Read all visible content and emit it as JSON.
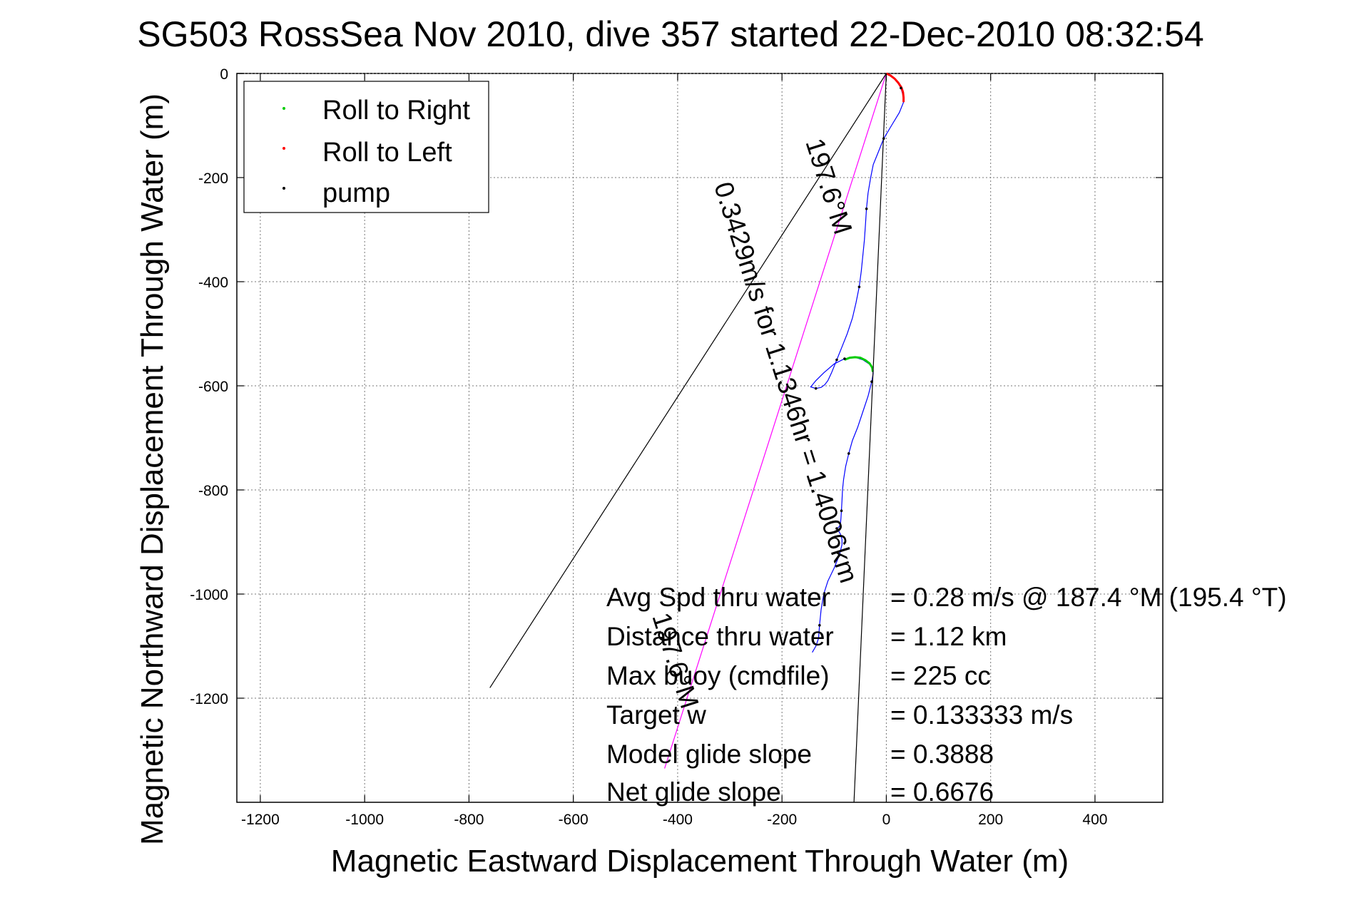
{
  "chart_data": {
    "type": "line",
    "title": "SG503 RossSea Nov 2010, dive 357 started 22-Dec-2010 08:32:54",
    "xlabel": "Magnetic Eastward Displacement Through Water (m)",
    "ylabel": "Magnetic Northward Displacement Through Water (m)",
    "xlim": [
      -1245,
      530
    ],
    "ylim": [
      -1400,
      0
    ],
    "xticks": [
      -1200,
      -1000,
      -800,
      -600,
      -400,
      -200,
      0,
      200,
      400
    ],
    "yticks": [
      0,
      -200,
      -400,
      -600,
      -800,
      -1000,
      -1200
    ],
    "grid": true,
    "legend": {
      "placement": "top-left",
      "entries": [
        {
          "label": "Roll to Right",
          "color": "#00cc00"
        },
        {
          "label": "Roll to Left",
          "color": "#ff0000"
        },
        {
          "label": "pump",
          "color": "#000000"
        }
      ]
    },
    "series": [
      {
        "color": "#0000ff",
        "x": [
          0,
          10,
          20,
          28,
          32,
          33,
          25,
          10,
          -5,
          -15,
          -25,
          -30,
          -35,
          -38,
          -40,
          -42,
          -45,
          -48,
          -52,
          -58,
          -65,
          -75,
          -85,
          -95,
          -105,
          -112,
          -118,
          -125,
          -135,
          -145,
          -135,
          -120,
          -100,
          -80,
          -60,
          -45,
          -30,
          -25,
          -28,
          -35,
          -45,
          -55,
          -65,
          -72,
          -78,
          -82,
          -84,
          -85,
          -86,
          -87,
          -88,
          -90,
          -92,
          -95,
          -92,
          -88,
          -85,
          -85,
          -90,
          -100,
          -112,
          -120,
          -125,
          -128,
          -130,
          -135,
          -142
        ],
        "y": [
          0,
          -5,
          -15,
          -28,
          -42,
          -55,
          -75,
          -100,
          -125,
          -150,
          -175,
          -200,
          -230,
          -260,
          -290,
          -320,
          -350,
          -380,
          -410,
          -440,
          -470,
          -500,
          -525,
          -550,
          -575,
          -590,
          -598,
          -603,
          -605,
          -602,
          -590,
          -575,
          -558,
          -548,
          -545,
          -550,
          -560,
          -575,
          -592,
          -620,
          -650,
          -680,
          -705,
          -730,
          -755,
          -780,
          -800,
          -820,
          -840,
          -855,
          -865,
          -870,
          -872,
          -874,
          -878,
          -885,
          -895,
          -905,
          -925,
          -950,
          -975,
          -1000,
          -1030,
          -1060,
          -1085,
          -1100,
          -1112
        ]
      },
      {
        "name": "Roll to Left",
        "color": "#ff0000",
        "x": [
          0,
          8,
          16,
          23,
          29,
          32,
          33,
          33
        ],
        "y": [
          0,
          -4,
          -10,
          -18,
          -27,
          -36,
          -46,
          -55
        ]
      },
      {
        "name": "Roll to Right",
        "color": "#00cc00",
        "x": [
          -80,
          -70,
          -60,
          -50,
          -40,
          -32,
          -27,
          -26
        ],
        "y": [
          -550,
          -546,
          -545,
          -546,
          -551,
          -557,
          -565,
          -573
        ]
      },
      {
        "color": "#ff00ff",
        "x": [
          0,
          -425
        ],
        "y": [
          0,
          -1335
        ]
      },
      {
        "color": "#000000",
        "x": [
          0,
          -760
        ],
        "y": [
          0,
          -1180
        ]
      },
      {
        "color": "#000000",
        "x": [
          0,
          -62
        ],
        "y": [
          0,
          -1400
        ]
      }
    ],
    "annotations": {
      "rotated_label_1": "0.3429m/s for 1.1346hr = 1.4006km",
      "rotated_label_2": "197.6°M",
      "rotated_label_3": "197.6°M",
      "stats": [
        {
          "label": "Avg Spd thru water",
          "value": "=  0.28 m/s @ 187.4 °M (195.4 °T)"
        },
        {
          "label": "Distance thru water",
          "value": "=  1.12 km"
        },
        {
          "label": "Max buoy (cmdfile)",
          "value": "= 225 cc"
        },
        {
          "label": "Target w",
          "value": "= 0.133333 m/s"
        },
        {
          "label": "Model glide slope",
          "value": "= 0.3888"
        },
        {
          "label": "Net glide slope",
          "value": "= 0.6676"
        }
      ]
    }
  }
}
